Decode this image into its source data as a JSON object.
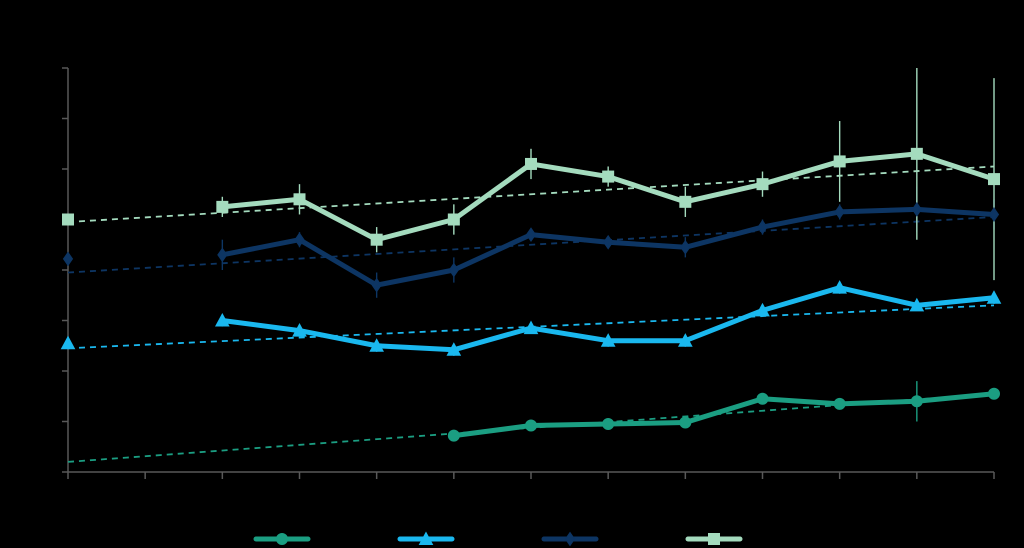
{
  "chart_data": {
    "type": "line",
    "title": "",
    "xlabel": "",
    "ylabel": "",
    "x": [
      0,
      1,
      2,
      3,
      4,
      5,
      6,
      7,
      8,
      9,
      10,
      11,
      12
    ],
    "xlim": [
      0,
      12
    ],
    "ylim": [
      0,
      8
    ],
    "y_tick_count": 9,
    "x_tick_count": 13,
    "grid": false,
    "legend_position": "bottom",
    "series": [
      {
        "name": "",
        "color": "#1b9e82",
        "marker": "circle",
        "values": [
          null,
          null,
          null,
          null,
          null,
          0.72,
          0.92,
          0.95,
          0.98,
          1.45,
          1.35,
          1.4,
          1.55
        ],
        "errors": [
          null,
          null,
          null,
          null,
          null,
          0.1,
          0.08,
          0.08,
          0.08,
          0.08,
          0.08,
          0.4,
          0.08
        ],
        "trend": [
          0.2,
          1.55
        ]
      },
      {
        "name": "",
        "color": "#1ab8ef",
        "marker": "triangle",
        "values": [
          2.55,
          null,
          3.0,
          2.8,
          2.5,
          2.42,
          2.85,
          2.6,
          2.6,
          3.2,
          3.65,
          3.3,
          3.45
        ],
        "errors": [
          null,
          null,
          0.12,
          0.08,
          0.12,
          0.12,
          0.08,
          0.12,
          0.12,
          0.12,
          0.12,
          0.08,
          0.12
        ],
        "trend": [
          2.45,
          3.3
        ]
      },
      {
        "name": "",
        "color": "#0d3563",
        "marker": "diamond",
        "values": [
          4.22,
          null,
          4.3,
          4.6,
          3.7,
          4.0,
          4.7,
          4.55,
          4.45,
          4.85,
          5.15,
          5.2,
          5.1
        ],
        "errors": [
          null,
          null,
          0.3,
          0.15,
          0.25,
          0.25,
          0.12,
          0.12,
          0.2,
          0.15,
          0.15,
          0.45,
          0.3
        ],
        "trend": [
          3.95,
          5.05
        ]
      },
      {
        "name": "",
        "color": "#a4dbbe",
        "marker": "square",
        "values": [
          5.0,
          null,
          5.25,
          5.4,
          4.6,
          5.0,
          6.1,
          5.85,
          5.35,
          5.7,
          6.15,
          6.3,
          5.8
        ],
        "errors": [
          null,
          null,
          0.2,
          0.3,
          0.25,
          0.3,
          0.3,
          0.2,
          0.3,
          0.25,
          0.8,
          1.7,
          2.0
        ],
        "trend": [
          4.95,
          6.05
        ]
      }
    ]
  }
}
